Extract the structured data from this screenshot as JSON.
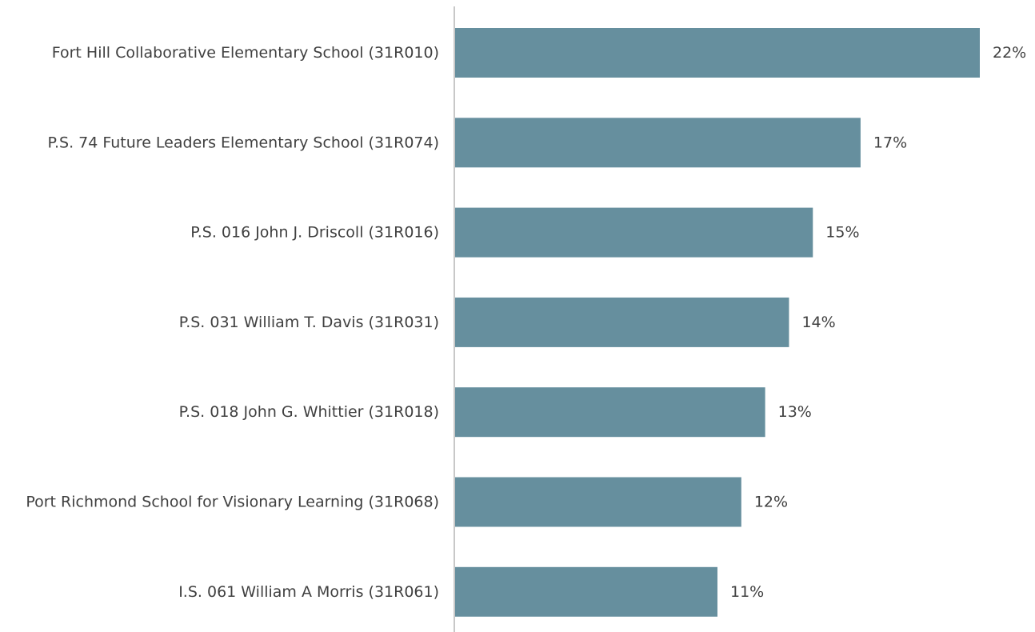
{
  "chart_data": {
    "type": "bar",
    "orientation": "horizontal",
    "categories": [
      "Fort Hill Collaborative Elementary School (31R010)",
      "P.S. 74 Future Leaders Elementary School (31R074)",
      "P.S. 016 John J. Driscoll (31R016)",
      "P.S. 031 William T. Davis (31R031)",
      "P.S. 018 John G. Whittier (31R018)",
      "Port Richmond School for Visionary Learning (31R068)",
      "I.S. 061 William A Morris (31R061)"
    ],
    "values": [
      22,
      17,
      15,
      14,
      13,
      12,
      11
    ],
    "value_labels": [
      "22%",
      "17%",
      "15%",
      "14%",
      "13%",
      "12%",
      "11%"
    ],
    "bar_color": "#668f9e",
    "axis_color": "#c8c8c8",
    "text_color": "#404040",
    "grid": false,
    "legend": "none"
  }
}
